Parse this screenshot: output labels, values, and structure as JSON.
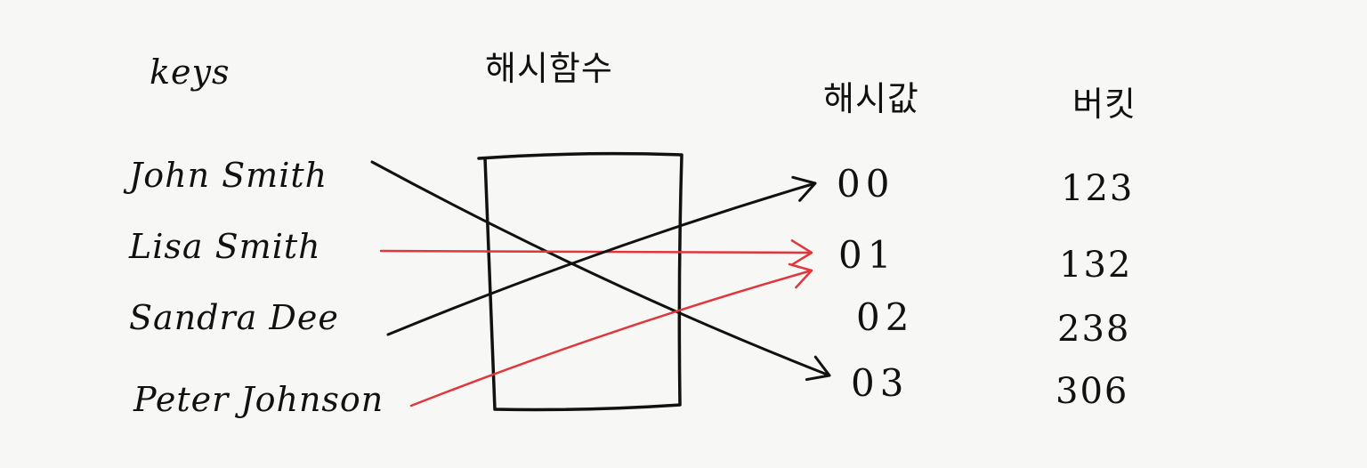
{
  "colors": {
    "ink": "#111111",
    "red": "#e0363c",
    "paper": "#f7f7f5"
  },
  "headers": {
    "keys": "keys",
    "hash_function": "해시함수",
    "hash_value": "해시값",
    "bucket": "버킷"
  },
  "keys": [
    "John Smith",
    "Lisa Smith",
    "Sandra Dee",
    "Peter Johnson"
  ],
  "hash_values": [
    "00",
    "01",
    "02",
    "03"
  ],
  "buckets": [
    "123",
    "132",
    "238",
    "306"
  ],
  "mappings": [
    {
      "key": "John Smith",
      "hash": "03",
      "color": "ink"
    },
    {
      "key": "Lisa Smith",
      "hash": "01",
      "color": "red"
    },
    {
      "key": "Sandra Dee",
      "hash": "00",
      "color": "ink"
    },
    {
      "key": "Peter Johnson",
      "hash": "01",
      "color": "red"
    }
  ]
}
